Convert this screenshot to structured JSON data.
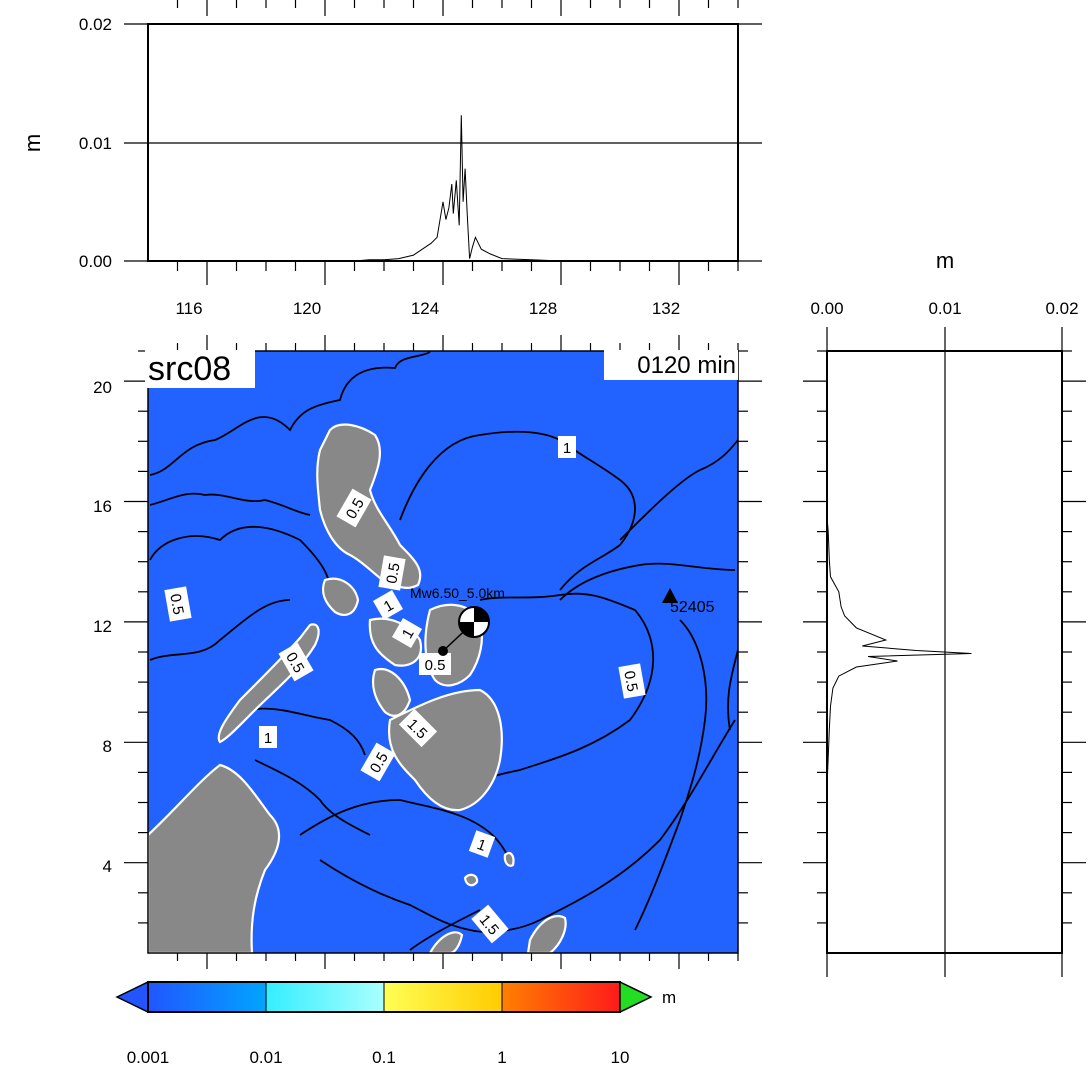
{
  "source_label": "src08",
  "time_label": "0120 min",
  "top_panel": {
    "ylabel": "m",
    "yticks": [
      "0.00",
      "0.01",
      "0.02"
    ],
    "xticks": [
      "116",
      "120",
      "124",
      "128",
      "132"
    ]
  },
  "right_panel": {
    "xlabel": "m",
    "xticks": [
      "0.00",
      "0.01",
      "0.02"
    ]
  },
  "map": {
    "yticks": [
      "4",
      "8",
      "12",
      "16",
      "20"
    ],
    "lon_range": [
      114,
      134
    ],
    "lat_range": [
      1,
      21
    ],
    "epicenter_label": "Mw6.50_5.0km",
    "station_label": "52405",
    "contour_labels": [
      "1",
      "0.5",
      "0.5",
      "0.5",
      "0.5",
      "0.5",
      "0.5",
      "1",
      "1",
      "1",
      "1.5",
      "1",
      "0.5",
      "1.5"
    ]
  },
  "colorbar": {
    "labels": [
      "0.001",
      "0.01",
      "0.1",
      "1",
      "10"
    ],
    "unit": "m",
    "colors": {
      "under": "#2255ff",
      "over": "#22dd22",
      "stops": [
        "#2255ff",
        "#00a5ff",
        "#33eeff",
        "#aaffff",
        "#ffff55",
        "#ffcc00",
        "#ff8000",
        "#ff5500",
        "#ff1a1a"
      ]
    }
  },
  "colors": {
    "ocean": "#2262ff",
    "land": "#888888",
    "coast_shelf": "#ffffff",
    "contour": "#000000"
  }
}
